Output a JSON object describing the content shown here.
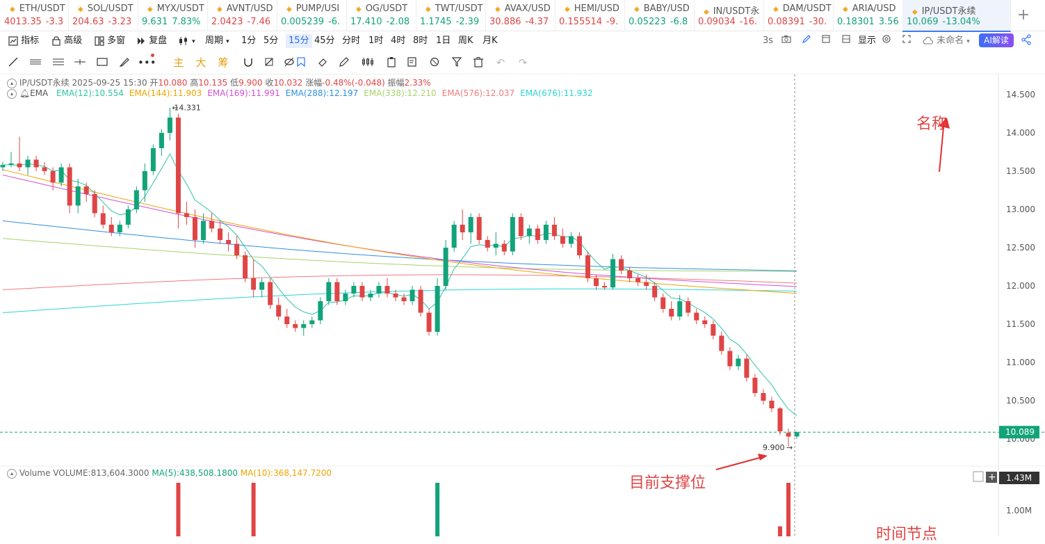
{
  "tickers": [
    {
      "name": "ETH/USDT",
      "price": "4013.35",
      "change": "-3.3",
      "dir": "down"
    },
    {
      "name": "SOL/USDT",
      "price": "204.63",
      "change": "-3.23",
      "dir": "down"
    },
    {
      "name": "MYX/USDT",
      "price": "9.631",
      "change": "7.83%",
      "dir": "up"
    },
    {
      "name": "AVNT/USD",
      "price": "2.0423",
      "change": "-7.46",
      "dir": "down"
    },
    {
      "name": "PUMP/USI",
      "price": "0.005239",
      "change": "-6.",
      "dir": "up"
    },
    {
      "name": "OG/USDT",
      "price": "17.410",
      "change": "-2.08",
      "dir": "up"
    },
    {
      "name": "TWT/USDT",
      "price": "1.1745",
      "change": "-2.39",
      "dir": "up"
    },
    {
      "name": "AVAX/USD",
      "price": "30.886",
      "change": "-4.37",
      "dir": "down"
    },
    {
      "name": "HEMI/USD",
      "price": "0.155514",
      "change": "-9.",
      "dir": "down"
    },
    {
      "name": "BABY/USD",
      "price": "0.05223",
      "change": "-6.8",
      "dir": "up"
    },
    {
      "name": "IN/USDT永",
      "price": "0.09034",
      "change": "-16.",
      "dir": "down"
    },
    {
      "name": "DAM/USDT",
      "price": "0.08391",
      "change": "-30.",
      "dir": "down"
    },
    {
      "name": "ARIA/USD",
      "price": "0.18301",
      "change": "3.56",
      "dir": "up"
    },
    {
      "name": "IP/USDT永续",
      "price": "10.069",
      "change": "-13.04%",
      "dir": "up"
    }
  ],
  "toolbar": {
    "indicators": "指标",
    "advanced": "高级",
    "multiwindow": "多窗",
    "replay": "复盘",
    "period": "周期",
    "intervals": [
      "1分",
      "5分",
      "15分",
      "45分",
      "分时",
      "1时",
      "4时",
      "8时",
      "1日",
      "周K",
      "月K"
    ],
    "selected_interval": "15分",
    "refresh": "3s",
    "display": "显示",
    "unnamed": "未命名",
    "ai_button": "AI解读"
  },
  "drawing_tools": {
    "cn1": "主",
    "cn2": "大",
    "cn3": "筹"
  },
  "info": {
    "symbol": "IP/USDT永续",
    "datetime": "2025-09-25 15:30",
    "open_label": "开",
    "open": "10.080",
    "high_label": "高",
    "high": "10.135",
    "low_label": "低",
    "low": "9.900",
    "close_label": "收",
    "close": "10.032",
    "chg_label": "涨幅",
    "chg": "-0.48%(-0.048)",
    "amp_label": "振幅",
    "amp": "2.33%"
  },
  "ema_legend": {
    "label": "EMA",
    "items": [
      {
        "text": "EMA(12):10.554",
        "color": "#2ec4a6"
      },
      {
        "text": "EMA(144):11.903",
        "color": "#f0a400"
      },
      {
        "text": "EMA(169):11.991",
        "color": "#d24fd6"
      },
      {
        "text": "EMA(288):12.197",
        "color": "#2e8fe0"
      },
      {
        "text": "EMA(338):12.210",
        "color": "#a8d26a"
      },
      {
        "text": "EMA(576):12.037",
        "color": "#f07a7a"
      },
      {
        "text": "EMA(676):11.932",
        "color": "#2ad6d6"
      }
    ]
  },
  "volume_legend": {
    "label": "Volume",
    "volume": "VOLUME:813,604.3000",
    "ma5": "MA(5):438,508.1800",
    "ma10": "MA(10):368,147.7200",
    "ma5_color": "#12a37a",
    "ma10_color": "#f0a400"
  },
  "chart_data": {
    "type": "candlestick",
    "price_axis": {
      "ticks": [
        "14.500",
        "14.000",
        "13.500",
        "13.000",
        "12.500",
        "12.000",
        "11.500",
        "11.000",
        "10.500",
        "10.000"
      ],
      "range": [
        9.7,
        14.7
      ]
    },
    "current_price": "10.089",
    "high_marker": "14.331",
    "low_marker": "9.900",
    "volume_axis": {
      "ticks": [
        "1.43M",
        "1.00M"
      ]
    },
    "candles": [
      [
        13.55,
        13.62,
        13.5,
        13.58
      ],
      [
        13.58,
        13.75,
        13.55,
        13.6
      ],
      [
        13.6,
        13.95,
        13.5,
        13.55
      ],
      [
        13.55,
        13.7,
        13.45,
        13.65
      ],
      [
        13.65,
        13.7,
        13.5,
        13.55
      ],
      [
        13.55,
        13.62,
        13.45,
        13.5
      ],
      [
        13.5,
        13.55,
        13.25,
        13.35
      ],
      [
        13.35,
        13.6,
        13.3,
        13.55
      ],
      [
        13.55,
        13.6,
        12.95,
        13.05
      ],
      [
        13.05,
        13.4,
        12.95,
        13.3
      ],
      [
        13.3,
        13.35,
        13.1,
        13.2
      ],
      [
        13.2,
        13.25,
        12.9,
        12.95
      ],
      [
        12.95,
        13.05,
        12.75,
        12.8
      ],
      [
        12.8,
        12.9,
        12.65,
        12.7
      ],
      [
        12.7,
        12.85,
        12.65,
        12.8
      ],
      [
        12.8,
        13.05,
        12.75,
        13.0
      ],
      [
        13.0,
        13.3,
        12.95,
        13.25
      ],
      [
        13.25,
        13.6,
        13.1,
        13.5
      ],
      [
        13.5,
        13.85,
        13.45,
        13.8
      ],
      [
        13.8,
        14.05,
        13.7,
        14.0
      ],
      [
        14.0,
        14.33,
        13.9,
        14.2
      ],
      [
        14.2,
        14.25,
        12.75,
        12.95
      ],
      [
        12.95,
        13.1,
        12.8,
        12.9
      ],
      [
        12.9,
        13.0,
        12.5,
        12.6
      ],
      [
        12.6,
        12.95,
        12.55,
        12.85
      ],
      [
        12.85,
        12.95,
        12.7,
        12.75
      ],
      [
        12.75,
        12.85,
        12.55,
        12.6
      ],
      [
        12.6,
        12.7,
        12.45,
        12.55
      ],
      [
        12.55,
        12.65,
        12.35,
        12.4
      ],
      [
        12.4,
        12.45,
        12.05,
        12.1
      ],
      [
        12.1,
        12.35,
        11.85,
        11.95
      ],
      [
        11.95,
        12.1,
        11.85,
        12.05
      ],
      [
        12.05,
        12.1,
        11.7,
        11.75
      ],
      [
        11.75,
        11.85,
        11.55,
        11.6
      ],
      [
        11.6,
        11.7,
        11.45,
        11.5
      ],
      [
        11.5,
        11.55,
        11.4,
        11.45
      ],
      [
        11.45,
        11.55,
        11.35,
        11.5
      ],
      [
        11.5,
        11.6,
        11.45,
        11.55
      ],
      [
        11.55,
        11.85,
        11.5,
        11.8
      ],
      [
        11.8,
        12.1,
        11.75,
        12.05
      ],
      [
        12.05,
        12.1,
        11.75,
        11.8
      ],
      [
        11.8,
        11.95,
        11.75,
        11.9
      ],
      [
        11.9,
        12.05,
        11.85,
        12.0
      ],
      [
        12.0,
        12.05,
        11.8,
        11.85
      ],
      [
        11.85,
        11.95,
        11.8,
        11.9
      ],
      [
        11.9,
        12.05,
        11.85,
        12.0
      ],
      [
        12.0,
        12.1,
        11.85,
        11.9
      ],
      [
        11.9,
        11.95,
        11.8,
        11.85
      ],
      [
        11.85,
        11.9,
        11.75,
        11.8
      ],
      [
        11.8,
        12.0,
        11.75,
        11.95
      ],
      [
        11.95,
        12.0,
        11.6,
        11.65
      ],
      [
        11.65,
        11.7,
        11.35,
        11.4
      ],
      [
        11.4,
        12.1,
        11.35,
        12.0
      ],
      [
        12.0,
        12.6,
        11.95,
        12.5
      ],
      [
        12.5,
        12.85,
        12.45,
        12.8
      ],
      [
        12.8,
        13.0,
        12.6,
        12.7
      ],
      [
        12.7,
        12.95,
        12.55,
        12.9
      ],
      [
        12.9,
        12.95,
        12.55,
        12.6
      ],
      [
        12.6,
        12.65,
        12.45,
        12.5
      ],
      [
        12.5,
        12.7,
        12.4,
        12.55
      ],
      [
        12.55,
        12.6,
        12.4,
        12.45
      ],
      [
        12.45,
        12.95,
        12.4,
        12.9
      ],
      [
        12.9,
        12.95,
        12.6,
        12.65
      ],
      [
        12.65,
        12.8,
        12.55,
        12.75
      ],
      [
        12.75,
        12.8,
        12.55,
        12.6
      ],
      [
        12.6,
        12.85,
        12.55,
        12.8
      ],
      [
        12.8,
        12.9,
        12.6,
        12.65
      ],
      [
        12.65,
        12.75,
        12.5,
        12.55
      ],
      [
        12.55,
        12.7,
        12.5,
        12.65
      ],
      [
        12.65,
        12.7,
        12.35,
        12.4
      ],
      [
        12.4,
        12.45,
        12.05,
        12.1
      ],
      [
        12.1,
        12.15,
        11.95,
        12.0
      ],
      [
        12.0,
        12.05,
        11.95,
        11.98
      ],
      [
        11.98,
        12.42,
        11.95,
        12.35
      ],
      [
        12.35,
        12.4,
        12.15,
        12.2
      ],
      [
        12.2,
        12.25,
        12.05,
        12.1
      ],
      [
        12.1,
        12.15,
        12.0,
        12.05
      ],
      [
        12.05,
        12.15,
        11.95,
        12.0
      ],
      [
        12.0,
        12.05,
        11.8,
        11.85
      ],
      [
        11.85,
        11.9,
        11.65,
        11.7
      ],
      [
        11.7,
        11.8,
        11.55,
        11.6
      ],
      [
        11.6,
        11.88,
        11.55,
        11.8
      ],
      [
        11.8,
        11.85,
        11.6,
        11.65
      ],
      [
        11.65,
        11.7,
        11.5,
        11.55
      ],
      [
        11.55,
        11.6,
        11.45,
        11.5
      ],
      [
        11.5,
        11.55,
        11.3,
        11.35
      ],
      [
        11.35,
        11.4,
        11.1,
        11.15
      ],
      [
        11.15,
        11.2,
        10.9,
        10.95
      ],
      [
        10.95,
        11.1,
        10.9,
        11.05
      ],
      [
        11.05,
        11.1,
        10.75,
        10.8
      ],
      [
        10.8,
        10.85,
        10.55,
        10.6
      ],
      [
        10.6,
        10.65,
        10.45,
        10.5
      ],
      [
        10.5,
        10.55,
        10.35,
        10.4
      ],
      [
        10.4,
        10.42,
        10.05,
        10.1
      ],
      [
        10.08,
        10.135,
        9.9,
        10.032
      ],
      [
        10.032,
        10.1,
        10.0,
        10.089
      ]
    ],
    "volumes": [
      0.2,
      0.15,
      0.25,
      0.18,
      0.2,
      0.22,
      0.3,
      0.2,
      0.35,
      0.25,
      0.2,
      0.22,
      0.3,
      0.25,
      0.2,
      0.22,
      0.3,
      0.35,
      0.4,
      0.5,
      0.7,
      1.43,
      0.6,
      0.45,
      0.35,
      0.3,
      0.28,
      0.3,
      0.32,
      0.5,
      1.35,
      0.4,
      0.35,
      0.3,
      0.25,
      0.22,
      0.2,
      0.25,
      0.3,
      0.4,
      0.3,
      0.25,
      0.22,
      0.2,
      0.2,
      0.22,
      0.2,
      0.18,
      0.2,
      0.25,
      0.35,
      0.5,
      1.38,
      0.9,
      0.5,
      0.4,
      0.35,
      0.3,
      0.3,
      0.28,
      0.25,
      0.3,
      0.28,
      0.25,
      0.22,
      0.25,
      0.22,
      0.2,
      0.22,
      0.3,
      0.4,
      0.3,
      0.25,
      0.5,
      0.35,
      0.3,
      0.25,
      0.3,
      0.35,
      0.3,
      0.25,
      0.3,
      0.25,
      0.25,
      0.28,
      0.3,
      0.35,
      0.3,
      0.28,
      0.35,
      0.4,
      0.35,
      0.4,
      0.8,
      1.35,
      0.7
    ]
  },
  "annotations": {
    "name": "名称",
    "support": "目前支撑位",
    "time": "时间节点"
  }
}
